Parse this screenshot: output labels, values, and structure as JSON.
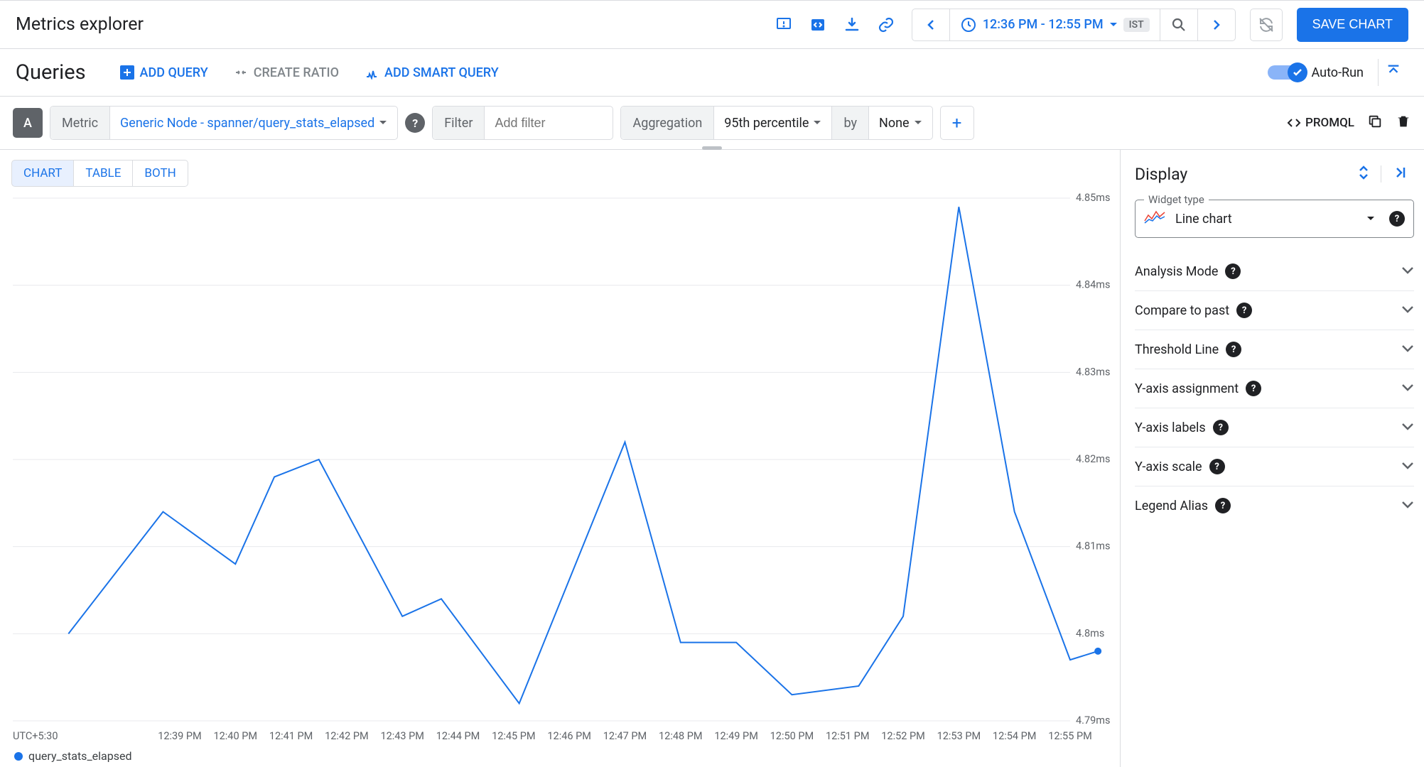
{
  "header": {
    "title": "Metrics explorer",
    "time_range": "12:36 PM - 12:55 PM",
    "tz_badge": "IST",
    "save_button": "SAVE CHART"
  },
  "queries": {
    "title": "Queries",
    "add_query": "ADD QUERY",
    "create_ratio": "CREATE RATIO",
    "add_smart_query": "ADD SMART QUERY",
    "autorun_label": "Auto-Run",
    "autorun_on": true
  },
  "builder": {
    "id": "A",
    "metric_label": "Metric",
    "metric_value": "Generic Node - spanner/query_stats_elapsed",
    "filter_label": "Filter",
    "filter_placeholder": "Add filter",
    "agg_label": "Aggregation",
    "agg_value": "95th percentile",
    "by_label": "by",
    "by_value": "None",
    "promql": "PROMQL"
  },
  "view_tabs": {
    "chart": "CHART",
    "table": "TABLE",
    "both": "BOTH",
    "active": "CHART"
  },
  "chart": {
    "type": "line",
    "series_name": "query_stats_elapsed",
    "line_color": "#1a73e8",
    "grid_color": "#e8eaed",
    "axis_text_color": "#5f6368",
    "x_tz_label": "UTC+5:30",
    "x_labels": [
      "12:39 PM",
      "12:40 PM",
      "12:41 PM",
      "12:42 PM",
      "12:43 PM",
      "12:44 PM",
      "12:45 PM",
      "12:46 PM",
      "12:47 PM",
      "12:48 PM",
      "12:49 PM",
      "12:50 PM",
      "12:51 PM",
      "12:52 PM",
      "12:53 PM",
      "12:54 PM",
      "12:55 PM"
    ],
    "y_labels": [
      "4.85ms",
      "4.84ms",
      "4.83ms",
      "4.82ms",
      "4.81ms",
      "4.8ms",
      "4.79ms"
    ],
    "ylim": [
      4.79,
      4.85
    ],
    "xlim_minutes": [
      36,
      55
    ],
    "background_color": "#ffffff",
    "line_width": 2,
    "end_marker_radius": 5,
    "points": [
      {
        "min": 37.0,
        "v": 4.8
      },
      {
        "min": 38.7,
        "v": 4.814
      },
      {
        "min": 40.0,
        "v": 4.808
      },
      {
        "min": 40.7,
        "v": 4.818
      },
      {
        "min": 41.5,
        "v": 4.82
      },
      {
        "min": 43.0,
        "v": 4.802
      },
      {
        "min": 43.7,
        "v": 4.804
      },
      {
        "min": 45.1,
        "v": 4.792
      },
      {
        "min": 47.0,
        "v": 4.822
      },
      {
        "min": 48.0,
        "v": 4.799
      },
      {
        "min": 49.0,
        "v": 4.799
      },
      {
        "min": 50.0,
        "v": 4.793
      },
      {
        "min": 51.2,
        "v": 4.794
      },
      {
        "min": 52.0,
        "v": 4.802
      },
      {
        "min": 53.0,
        "v": 4.849
      },
      {
        "min": 54.0,
        "v": 4.814
      },
      {
        "min": 55.0,
        "v": 4.797
      },
      {
        "min": 55.5,
        "v": 4.798
      }
    ]
  },
  "display": {
    "title": "Display",
    "widget_type_label": "Widget type",
    "widget_type_value": "Line chart",
    "sections": [
      "Analysis Mode",
      "Compare to past",
      "Threshold Line",
      "Y-axis assignment",
      "Y-axis labels",
      "Y-axis scale",
      "Legend Alias"
    ]
  }
}
